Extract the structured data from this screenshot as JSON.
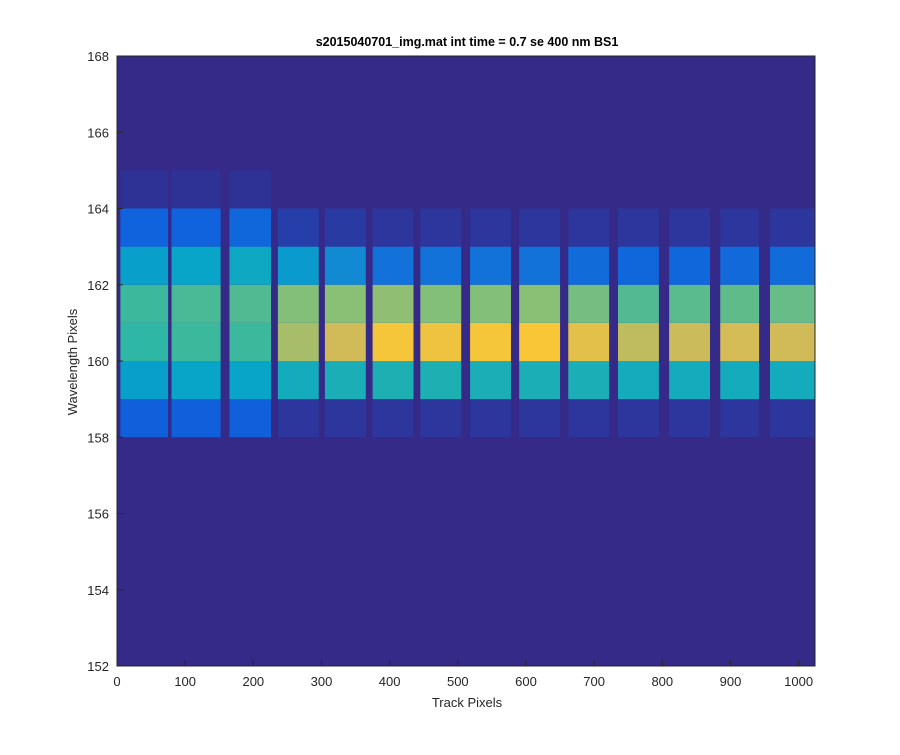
{
  "chart_data": {
    "type": "heatmap",
    "title": "s2015040701_img.mat int time = 0.7 se  400 nm BS1",
    "xlabel": "Track Pixels",
    "ylabel": "Wavelength Pixels",
    "xlim": [
      0,
      1024
    ],
    "ylim": [
      152,
      168
    ],
    "xticks": [
      0,
      100,
      200,
      300,
      400,
      500,
      600,
      700,
      800,
      900,
      1000
    ],
    "yticks": [
      152,
      154,
      156,
      158,
      160,
      162,
      164,
      166,
      168
    ],
    "grid": false,
    "background_color": "#352A87",
    "colormap": [
      "#352A87",
      "#0F5CDD",
      "#1481D6",
      "#06A4CA",
      "#2EB7A4",
      "#87BF77",
      "#D1BB59",
      "#FEC832",
      "#F9FB0E"
    ],
    "color_range": [
      0,
      1
    ],
    "columns": [
      {
        "x0": 5,
        "x1": 75,
        "rows": [
          {
            "y": 158,
            "v": 0.14
          },
          {
            "y": 159,
            "v": 0.36
          },
          {
            "y": 160,
            "v": 0.5
          },
          {
            "y": 161,
            "v": 0.52
          },
          {
            "y": 162,
            "v": 0.36
          },
          {
            "y": 163,
            "v": 0.15
          },
          {
            "y": 164,
            "v": 0.02
          }
        ]
      },
      {
        "x0": 80,
        "x1": 152,
        "rows": [
          {
            "y": 158,
            "v": 0.14
          },
          {
            "y": 159,
            "v": 0.38
          },
          {
            "y": 160,
            "v": 0.52
          },
          {
            "y": 161,
            "v": 0.54
          },
          {
            "y": 162,
            "v": 0.38
          },
          {
            "y": 163,
            "v": 0.15
          },
          {
            "y": 164,
            "v": 0.02
          }
        ]
      },
      {
        "x0": 165,
        "x1": 226,
        "rows": [
          {
            "y": 158,
            "v": 0.14
          },
          {
            "y": 159,
            "v": 0.38
          },
          {
            "y": 160,
            "v": 0.52
          },
          {
            "y": 161,
            "v": 0.55
          },
          {
            "y": 162,
            "v": 0.4
          },
          {
            "y": 163,
            "v": 0.16
          },
          {
            "y": 164,
            "v": 0.02
          }
        ]
      },
      {
        "x0": 236,
        "x1": 296,
        "rows": [
          {
            "y": 158,
            "v": 0.03
          },
          {
            "y": 159,
            "v": 0.42
          },
          {
            "y": 160,
            "v": 0.68
          },
          {
            "y": 161,
            "v": 0.62
          },
          {
            "y": 162,
            "v": 0.34
          },
          {
            "y": 163,
            "v": 0.05
          }
        ]
      },
      {
        "x0": 305,
        "x1": 365,
        "rows": [
          {
            "y": 158,
            "v": 0.03
          },
          {
            "y": 159,
            "v": 0.44
          },
          {
            "y": 160,
            "v": 0.75
          },
          {
            "y": 161,
            "v": 0.63
          },
          {
            "y": 162,
            "v": 0.28
          },
          {
            "y": 163,
            "v": 0.04
          }
        ]
      },
      {
        "x0": 375,
        "x1": 435,
        "rows": [
          {
            "y": 158,
            "v": 0.03
          },
          {
            "y": 159,
            "v": 0.45
          },
          {
            "y": 160,
            "v": 0.85
          },
          {
            "y": 161,
            "v": 0.64
          },
          {
            "y": 162,
            "v": 0.2
          },
          {
            "y": 163,
            "v": 0.03
          }
        ]
      },
      {
        "x0": 445,
        "x1": 505,
        "rows": [
          {
            "y": 158,
            "v": 0.03
          },
          {
            "y": 159,
            "v": 0.45
          },
          {
            "y": 160,
            "v": 0.83
          },
          {
            "y": 161,
            "v": 0.62
          },
          {
            "y": 162,
            "v": 0.2
          },
          {
            "y": 163,
            "v": 0.03
          }
        ]
      },
      {
        "x0": 518,
        "x1": 578,
        "rows": [
          {
            "y": 158,
            "v": 0.03
          },
          {
            "y": 159,
            "v": 0.44
          },
          {
            "y": 160,
            "v": 0.85
          },
          {
            "y": 161,
            "v": 0.62
          },
          {
            "y": 162,
            "v": 0.2
          },
          {
            "y": 163,
            "v": 0.03
          }
        ]
      },
      {
        "x0": 590,
        "x1": 650,
        "rows": [
          {
            "y": 158,
            "v": 0.03
          },
          {
            "y": 159,
            "v": 0.44
          },
          {
            "y": 160,
            "v": 0.86
          },
          {
            "y": 161,
            "v": 0.63
          },
          {
            "y": 162,
            "v": 0.2
          },
          {
            "y": 163,
            "v": 0.03
          }
        ]
      },
      {
        "x0": 662,
        "x1": 722,
        "rows": [
          {
            "y": 158,
            "v": 0.03
          },
          {
            "y": 159,
            "v": 0.44
          },
          {
            "y": 160,
            "v": 0.8
          },
          {
            "y": 161,
            "v": 0.6
          },
          {
            "y": 162,
            "v": 0.18
          },
          {
            "y": 163,
            "v": 0.03
          }
        ]
      },
      {
        "x0": 735,
        "x1": 795,
        "rows": [
          {
            "y": 158,
            "v": 0.03
          },
          {
            "y": 159,
            "v": 0.42
          },
          {
            "y": 160,
            "v": 0.72
          },
          {
            "y": 161,
            "v": 0.55
          },
          {
            "y": 162,
            "v": 0.16
          },
          {
            "y": 163,
            "v": 0.03
          }
        ]
      },
      {
        "x0": 810,
        "x1": 870,
        "rows": [
          {
            "y": 158,
            "v": 0.03
          },
          {
            "y": 159,
            "v": 0.42
          },
          {
            "y": 160,
            "v": 0.74
          },
          {
            "y": 161,
            "v": 0.56
          },
          {
            "y": 162,
            "v": 0.16
          },
          {
            "y": 163,
            "v": 0.03
          }
        ]
      },
      {
        "x0": 885,
        "x1": 942,
        "rows": [
          {
            "y": 158,
            "v": 0.03
          },
          {
            "y": 159,
            "v": 0.42
          },
          {
            "y": 160,
            "v": 0.76
          },
          {
            "y": 161,
            "v": 0.57
          },
          {
            "y": 162,
            "v": 0.17
          },
          {
            "y": 163,
            "v": 0.03
          }
        ]
      },
      {
        "x0": 958,
        "x1": 1024,
        "rows": [
          {
            "y": 158,
            "v": 0.03
          },
          {
            "y": 159,
            "v": 0.42
          },
          {
            "y": 160,
            "v": 0.75
          },
          {
            "y": 161,
            "v": 0.58
          },
          {
            "y": 162,
            "v": 0.18
          },
          {
            "y": 163,
            "v": 0.03
          }
        ]
      }
    ]
  }
}
